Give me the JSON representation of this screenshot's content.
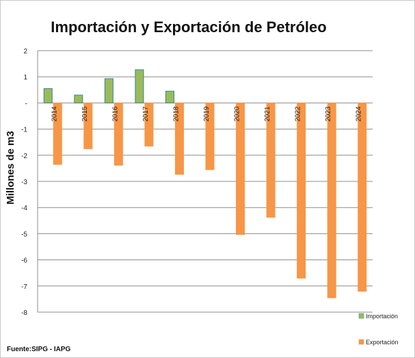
{
  "chart_data": {
    "type": "bar",
    "title": "Importación y Exportación de Petróleo",
    "xlabel": "",
    "ylabel": "Millones de m3",
    "categories": [
      "2014",
      "2015",
      "2016",
      "2017",
      "2018",
      "2019",
      "2020",
      "2021",
      "2022",
      "2023",
      "2024"
    ],
    "series": [
      {
        "name": "Importación",
        "color": "#9bbb59",
        "stroke": "#31859c",
        "values": [
          0.55,
          0.3,
          0.93,
          1.27,
          0.45,
          0,
          0,
          0,
          0,
          0,
          0
        ]
      },
      {
        "name": "Exportación",
        "color": "#f79646",
        "stroke": "#f79646",
        "values": [
          -2.35,
          -1.75,
          -2.38,
          -1.65,
          -2.73,
          -2.55,
          -5.03,
          -4.37,
          -6.7,
          -7.45,
          -7.2
        ]
      }
    ],
    "ylim": [
      -8,
      2
    ],
    "yticks": [
      2,
      1,
      0,
      -1,
      -2,
      -3,
      -4,
      -5,
      -6,
      -7,
      -8
    ],
    "ytick_labels": [
      "2",
      "1",
      "-",
      "-1",
      "-2",
      "-3",
      "-4",
      "-5",
      "-6",
      "-7",
      "-8"
    ],
    "grid": true,
    "legend": "right",
    "source": "Fuente:SIPG - IAPG"
  }
}
